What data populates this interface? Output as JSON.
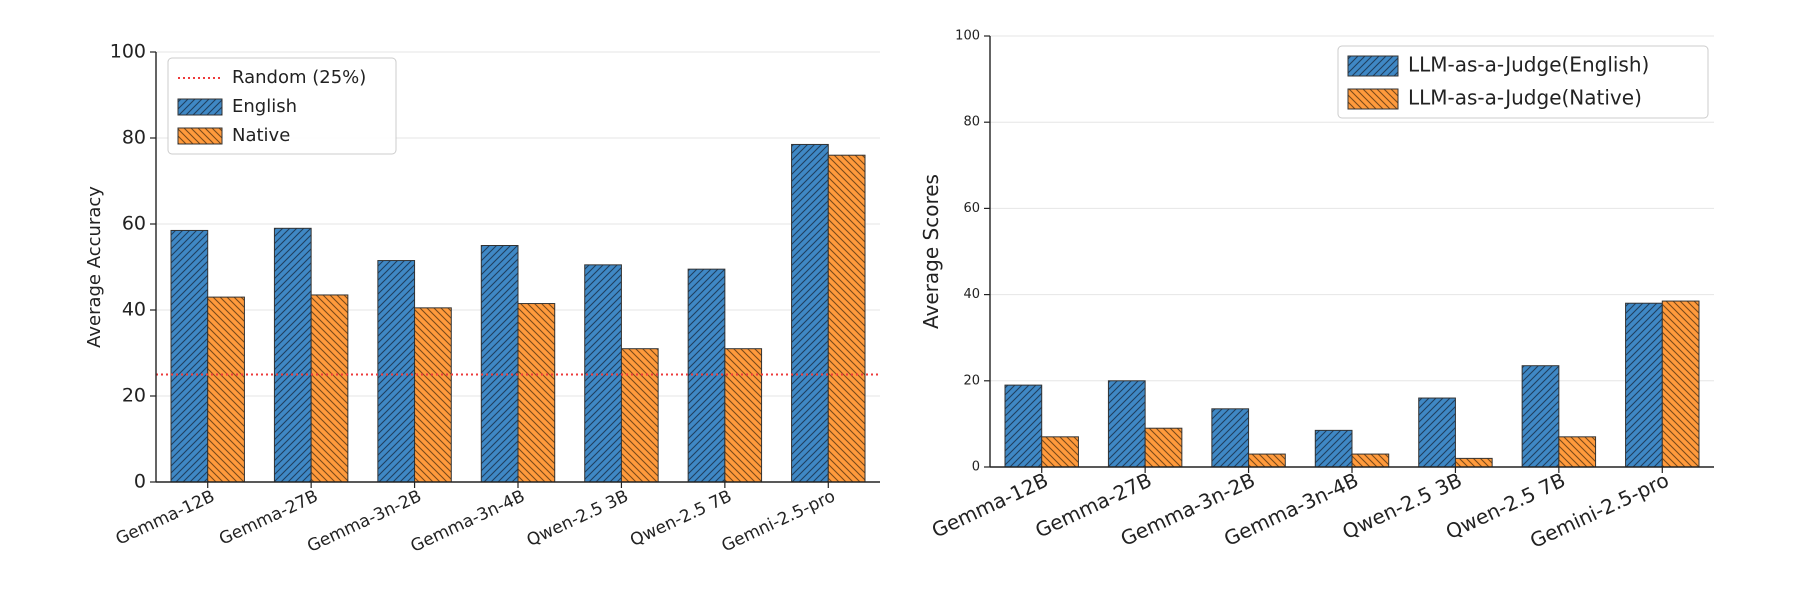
{
  "colors": {
    "english": "#3f88c5",
    "native": "#ff9a3c",
    "random_line": "#ee3b3b",
    "grid": "#e6e6e6",
    "axis": "#222222",
    "bar_edge": "#333333"
  },
  "chart_data": [
    {
      "type": "bar",
      "categories": [
        "Gemma-12B",
        "Gemma-27B",
        "Gemma-3n-2B",
        "Gemma-3n-4B",
        "Qwen-2.5 3B",
        "Qwen-2.5 7B",
        "Gemni-2.5-pro"
      ],
      "series": [
        {
          "name": "English",
          "values": [
            58.5,
            59,
            51.5,
            55,
            50.5,
            49.5,
            78.5
          ],
          "color": "english",
          "hatch": true
        },
        {
          "name": "Native",
          "values": [
            43,
            43.5,
            40.5,
            41.5,
            31,
            31,
            76
          ],
          "color": "native",
          "hatch": true
        }
      ],
      "reference_line": {
        "name": "Random (25%)",
        "value": 25,
        "style": "dotted"
      },
      "title": "",
      "xlabel": "",
      "ylabel": "Average Accuracy",
      "ylim": [
        0,
        100
      ],
      "yticks": [
        0,
        20,
        40,
        60,
        80,
        100
      ],
      "grid": true,
      "legend_position": "top-left",
      "legend_entries": [
        "Random (25%)",
        "English",
        "Native"
      ]
    },
    {
      "type": "bar",
      "categories": [
        "Gemma-12B",
        "Gemma-27B",
        "Gemma-3n-2B",
        "Gemma-3n-4B",
        "Qwen-2.5 3B",
        "Qwen-2.5 7B",
        "Gemini-2.5-pro"
      ],
      "series": [
        {
          "name": "LLM-as-a-Judge(English)",
          "values": [
            19,
            20,
            13.5,
            8.5,
            16,
            23.5,
            38
          ],
          "color": "english",
          "hatch": true
        },
        {
          "name": "LLM-as-a-Judge(Native)",
          "values": [
            7,
            9,
            3,
            3,
            2,
            7,
            38.5
          ],
          "color": "native",
          "hatch": true
        }
      ],
      "title": "",
      "xlabel": "",
      "ylabel": "Average Scores",
      "ylim": [
        0,
        100
      ],
      "yticks": [
        0,
        20,
        40,
        60,
        80,
        100
      ],
      "grid": true,
      "legend_position": "top-right",
      "legend_entries": [
        "LLM-as-a-Judge(English)",
        "LLM-as-a-Judge(Native)"
      ]
    }
  ]
}
